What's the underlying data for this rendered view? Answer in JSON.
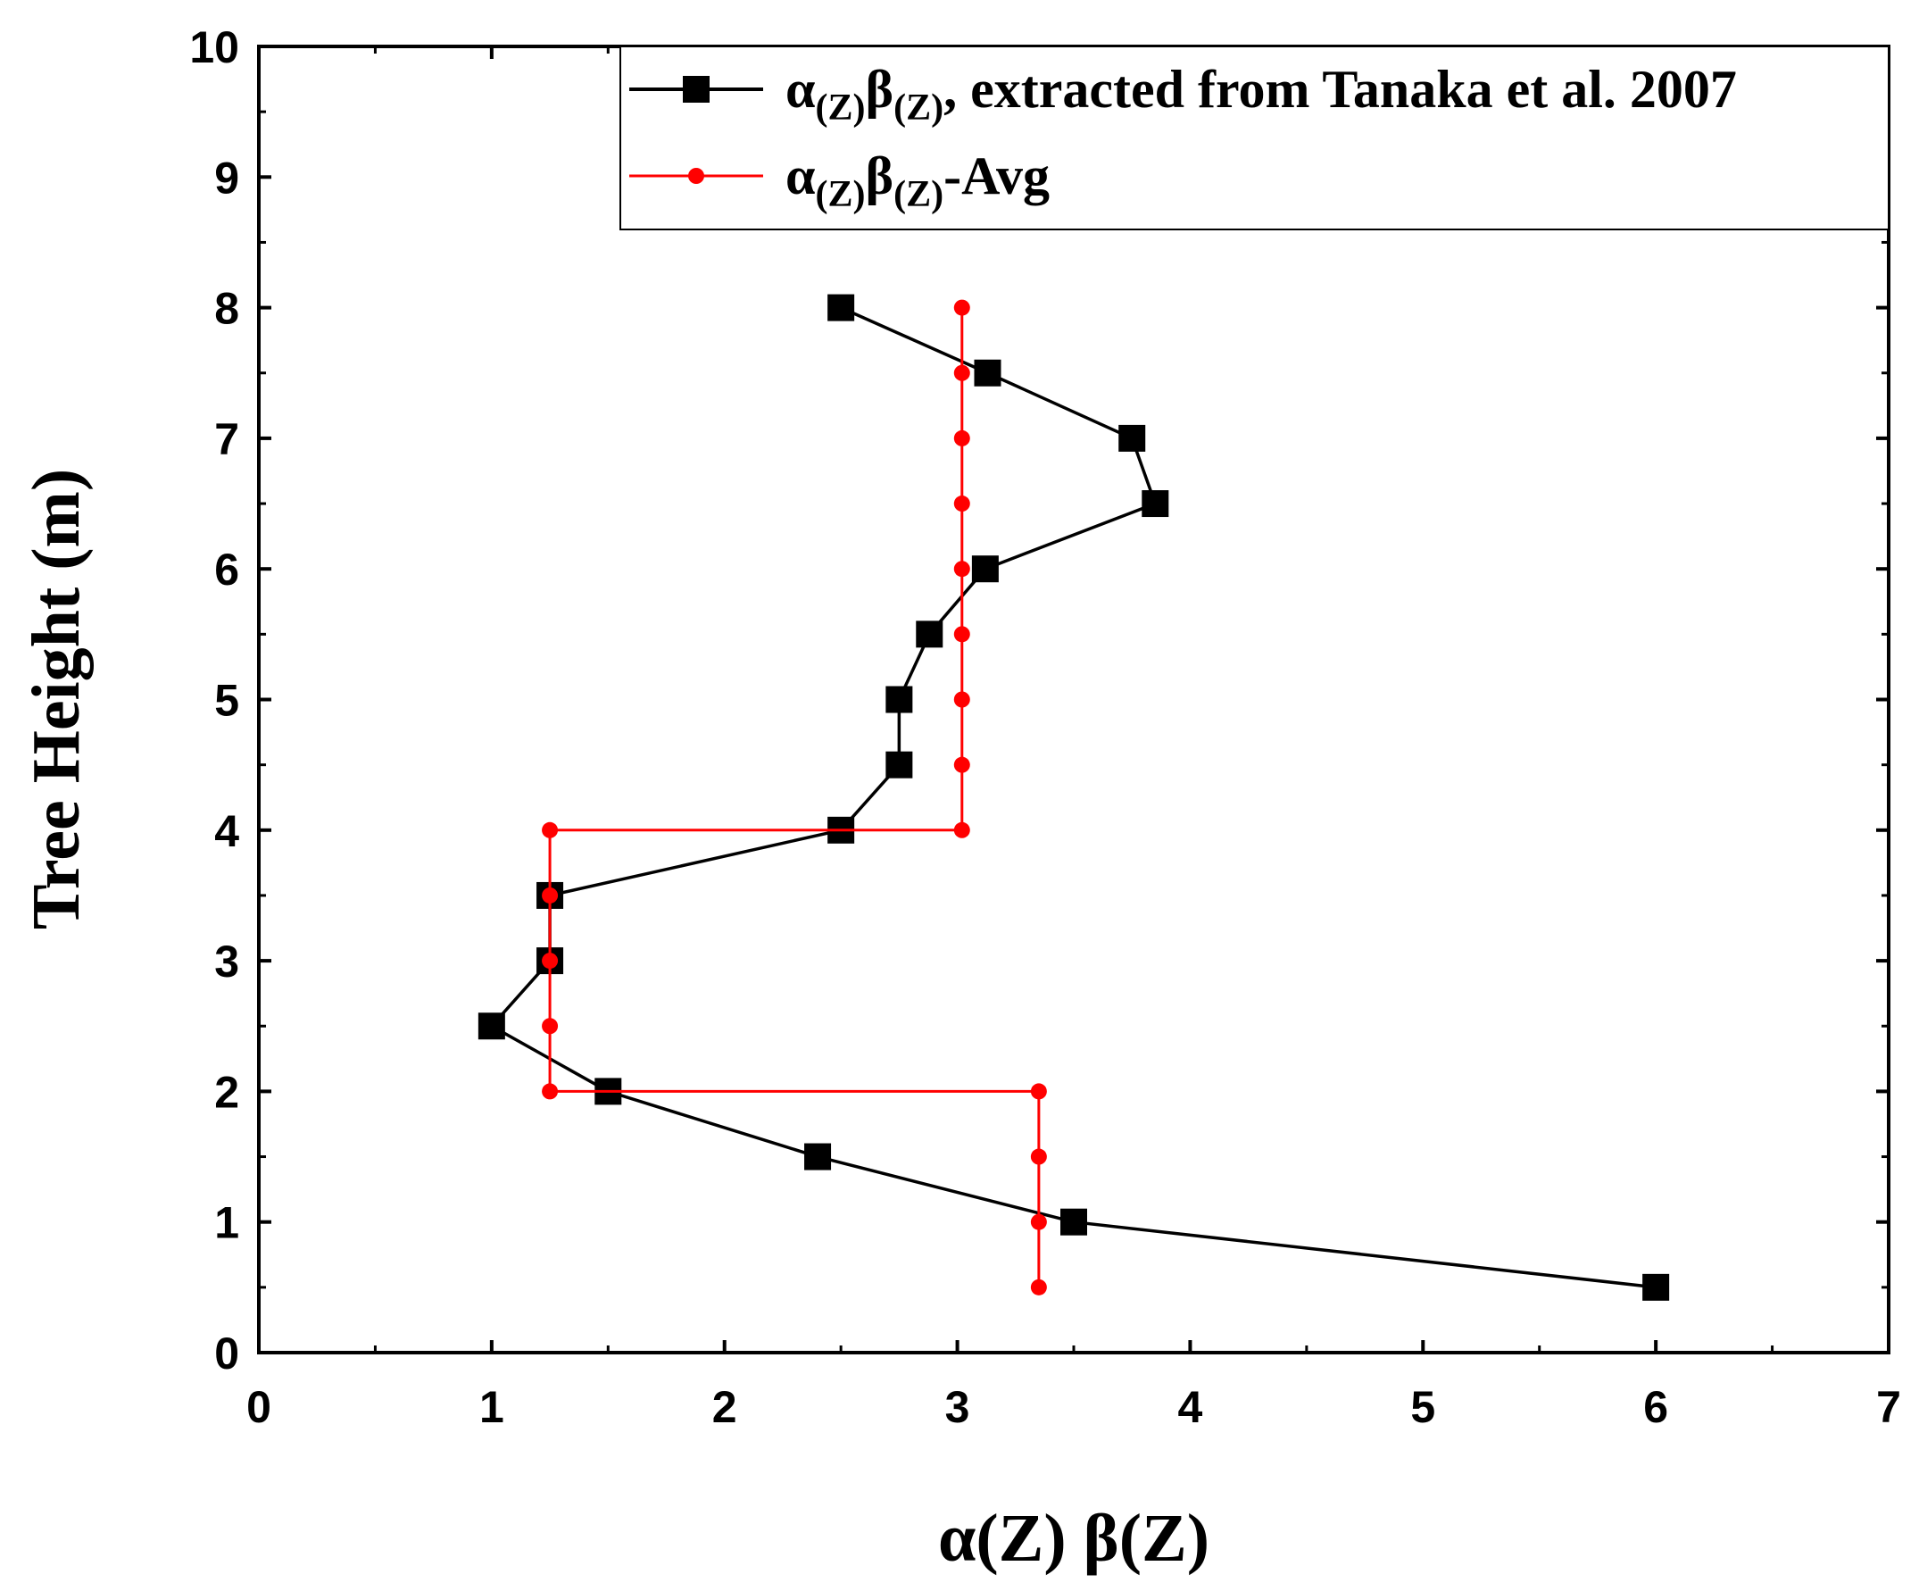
{
  "chart_data": {
    "type": "line",
    "title": "",
    "xlabel": "α(Z) β(Z)",
    "ylabel": "Tree Height (m)",
    "xlim": [
      0,
      7
    ],
    "ylim": [
      0,
      10
    ],
    "x_ticks": [
      "0",
      "1",
      "2",
      "3",
      "4",
      "5",
      "6",
      "7"
    ],
    "y_ticks": [
      "0",
      "1",
      "2",
      "3",
      "4",
      "5",
      "6",
      "7",
      "8",
      "9",
      "10"
    ],
    "legend_position": "top-right",
    "series": [
      {
        "name": "α(Z)β(Z), extracted from Tanaka et al. 2007",
        "legend_parts": [
          "α",
          "(Z)",
          "β",
          "(Z)",
          ", extracted from Tanaka et al. 2007"
        ],
        "color": "#000000",
        "marker": "square",
        "points": [
          [
            6.0,
            0.5
          ],
          [
            3.5,
            1.0
          ],
          [
            2.4,
            1.5
          ],
          [
            1.5,
            2.0
          ],
          [
            1.0,
            2.5
          ],
          [
            1.25,
            3.0
          ],
          [
            1.25,
            3.5
          ],
          [
            2.5,
            4.0
          ],
          [
            2.75,
            4.5
          ],
          [
            2.75,
            5.0
          ],
          [
            2.88,
            5.5
          ],
          [
            3.12,
            6.0
          ],
          [
            3.85,
            6.5
          ],
          [
            3.75,
            7.0
          ],
          [
            3.13,
            7.5
          ],
          [
            2.5,
            8.0
          ]
        ]
      },
      {
        "name": "α(Z)β(Z)-Avg",
        "legend_parts": [
          "α",
          "(Z)",
          "β",
          "(Z)",
          "-Avg"
        ],
        "color": "#ff0000",
        "marker": "circle",
        "points": [
          [
            3.35,
            0.5
          ],
          [
            3.35,
            1.0
          ],
          [
            3.35,
            1.5
          ],
          [
            3.35,
            2.0
          ],
          [
            1.25,
            2.0
          ],
          [
            1.25,
            2.5
          ],
          [
            1.25,
            3.0
          ],
          [
            1.25,
            3.5
          ],
          [
            1.25,
            4.0
          ],
          [
            3.02,
            4.0
          ],
          [
            3.02,
            4.5
          ],
          [
            3.02,
            5.0
          ],
          [
            3.02,
            5.5
          ],
          [
            3.02,
            6.0
          ],
          [
            3.02,
            6.5
          ],
          [
            3.02,
            7.0
          ],
          [
            3.02,
            7.5
          ],
          [
            3.02,
            8.0
          ]
        ]
      }
    ]
  }
}
